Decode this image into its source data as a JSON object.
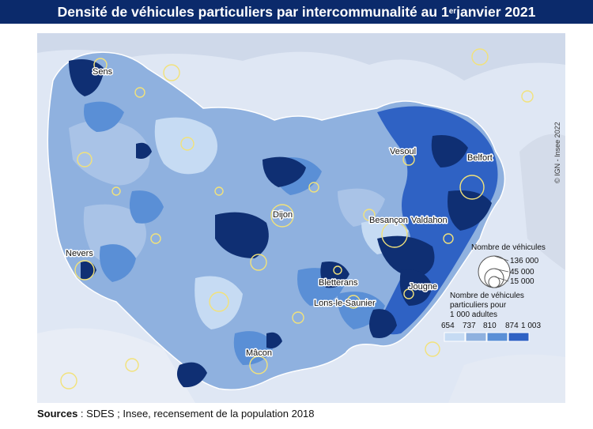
{
  "title": {
    "before_sup": "Densité de véhicules particuliers par intercommunalité au 1",
    "sup": "er",
    "after_sup": " janvier 2021"
  },
  "cities": [
    "Sens",
    "Vesoul",
    "Belfort",
    "Dijon",
    "Besançon",
    "Valdahon",
    "Nevers",
    "Bletterans",
    "Lons-le-Saunier",
    "Jougne",
    "Mâcon"
  ],
  "legend": {
    "size_title": "Nombre de véhicules",
    "size_values": [
      "136 000",
      "45 000",
      "15 000"
    ],
    "color_title": [
      "Nombre de véhicules",
      "particuliers pour",
      "1 000 adultes"
    ],
    "class_breaks": [
      "654",
      "737",
      "810",
      "874",
      "1 003"
    ],
    "class_colors": [
      "#c6dbf3",
      "#8fb1df",
      "#5a8fd6",
      "#2f62c4",
      "#0f2f73"
    ]
  },
  "copyright": "© IGN - Insee 2022",
  "sources": {
    "label": "Sources",
    "text": " : SDES ; Insee, recensement de la population 2018"
  }
}
